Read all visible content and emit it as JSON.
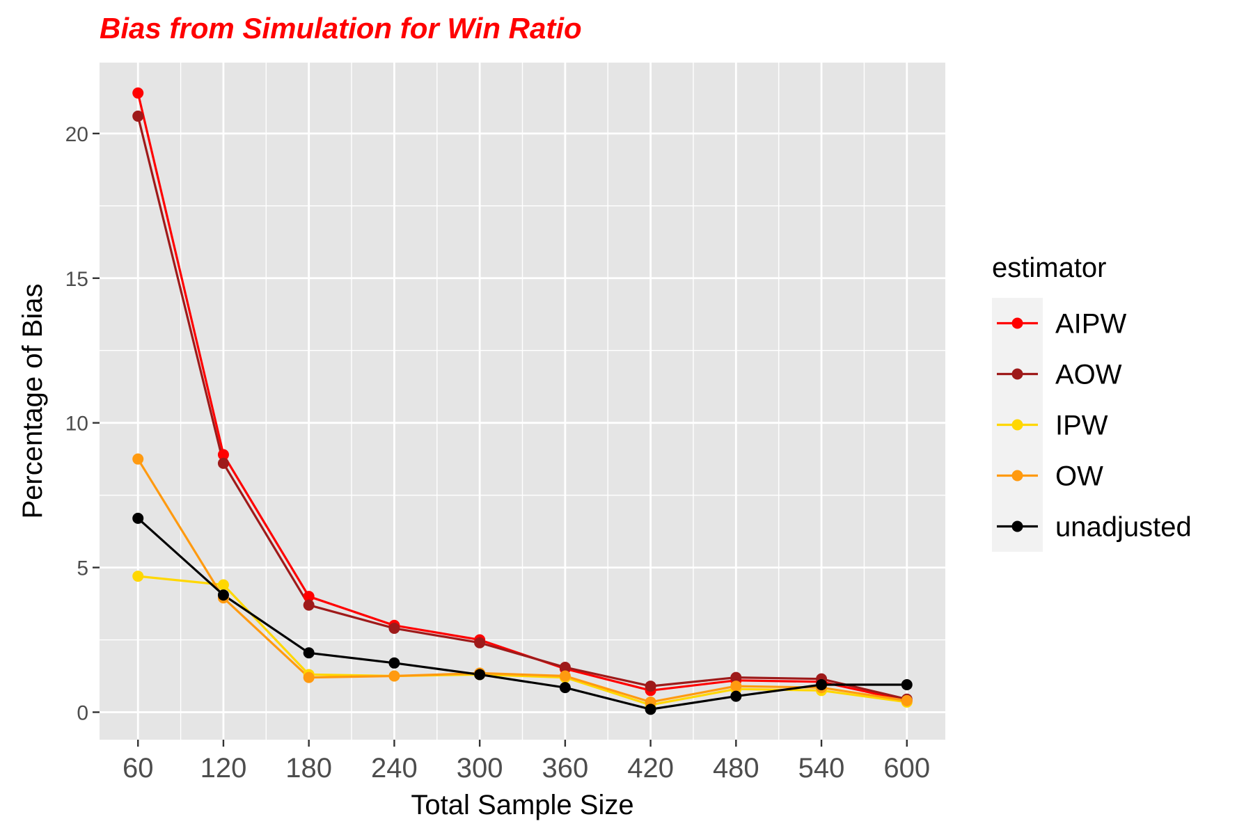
{
  "chart_data": {
    "type": "line",
    "title": "Bias from Simulation for Win Ratio",
    "title_color": "#FF0000",
    "xlabel": "Total Sample Size",
    "ylabel": "Percentage of Bias",
    "x": [
      60,
      120,
      180,
      240,
      300,
      360,
      420,
      480,
      540,
      600
    ],
    "x_tick_labels": [
      "60",
      "120",
      "180",
      "240",
      "300",
      "360",
      "420",
      "480",
      "540",
      "600"
    ],
    "y_ticks": [
      0,
      5,
      10,
      15,
      20
    ],
    "y_tick_labels": [
      "0",
      "5",
      "10",
      "15",
      "20"
    ],
    "xlim": [
      33,
      627
    ],
    "ylim": [
      -0.95,
      22.45
    ],
    "grid": true,
    "panel_background": "#E5E5E5",
    "legend": {
      "title": "estimator",
      "position": "right"
    },
    "series": [
      {
        "name": "AIPW",
        "color": "#FF0000",
        "values": [
          21.4,
          8.9,
          4.0,
          3.0,
          2.5,
          1.5,
          0.75,
          1.1,
          1.05,
          0.4
        ]
      },
      {
        "name": "AOW",
        "color": "#9E1A1A",
        "values": [
          20.6,
          8.6,
          3.7,
          2.9,
          2.4,
          1.55,
          0.9,
          1.2,
          1.15,
          0.45
        ]
      },
      {
        "name": "IPW",
        "color": "#FFD700",
        "values": [
          4.7,
          4.4,
          1.3,
          1.25,
          1.3,
          1.2,
          0.25,
          0.8,
          0.75,
          0.35
        ]
      },
      {
        "name": "OW",
        "color": "#FF9A10",
        "values": [
          8.75,
          3.95,
          1.2,
          1.25,
          1.35,
          1.25,
          0.35,
          0.9,
          0.85,
          0.4
        ]
      },
      {
        "name": "unadjusted",
        "color": "#000000",
        "values": [
          6.7,
          4.05,
          2.05,
          1.7,
          1.3,
          0.85,
          0.1,
          0.55,
          0.95,
          0.95
        ]
      }
    ]
  }
}
